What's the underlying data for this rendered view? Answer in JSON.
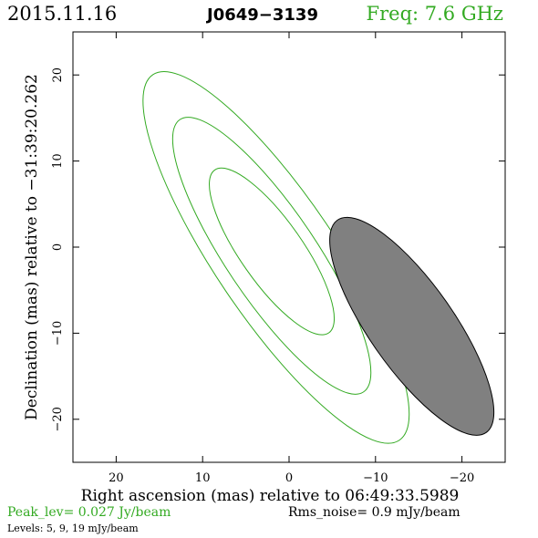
{
  "header": {
    "date": "2015.11.16",
    "source": "J0649−3139",
    "freq": "Freq: 7.6 GHz"
  },
  "footer": {
    "peak": "Peak_lev=  0.027 Jy/beam",
    "rms": "Rms_noise=   0.9 mJy/beam",
    "levels": "Levels:   5,   9,  19 mJy/beam"
  },
  "colors": {
    "contour": "#33aa22",
    "beam_fill": "#808080",
    "beam_edge": "#000000",
    "axes": "#000000"
  },
  "chart_data": {
    "type": "contour",
    "xlabel": "Right ascension (mas) relative to 06:49:33.5989",
    "ylabel": "Declination (mas) relative to −31:39:20.262",
    "xlim": [
      25,
      -25
    ],
    "ylim": [
      -25,
      25
    ],
    "x_reversed": true,
    "x_ticks": [
      20,
      10,
      0,
      -10,
      -20
    ],
    "x_tick_labels": [
      "20",
      "10",
      "0",
      "−10",
      "−20"
    ],
    "y_ticks": [
      20,
      10,
      0,
      -10,
      -20
    ],
    "y_tick_labels": [
      "20",
      "10",
      "0",
      "−10",
      "−20"
    ],
    "contours": [
      {
        "level": 19,
        "center": [
          2.0,
          -0.5
        ],
        "semi_major": 11.5,
        "semi_minor": 3.6,
        "pa_deg": 145
      },
      {
        "level": 9,
        "center": [
          2.0,
          -1.0
        ],
        "semi_major": 19.0,
        "semi_minor": 5.2,
        "pa_deg": 146
      },
      {
        "level": 5,
        "center": [
          1.5,
          -1.2
        ],
        "semi_major": 25.5,
        "semi_minor": 7.0,
        "pa_deg": 146
      }
    ],
    "beam": {
      "center": [
        -14.2,
        -9.2
      ],
      "semi_major": 15.0,
      "semi_minor": 4.9,
      "pa_deg": 145
    }
  }
}
